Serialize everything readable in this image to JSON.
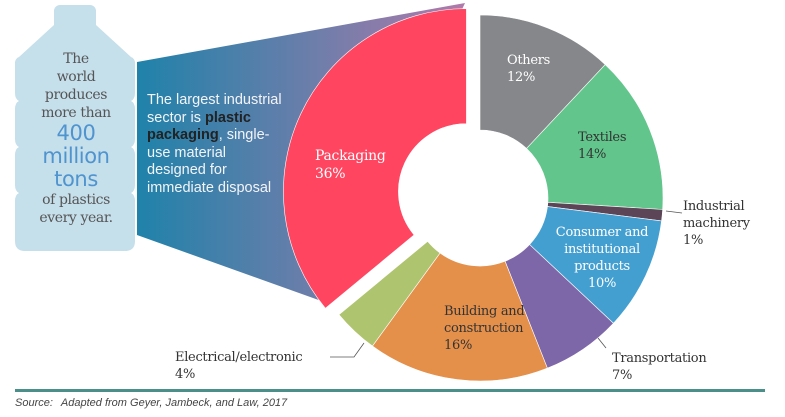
{
  "bottle": {
    "line1": "The",
    "line2": "world",
    "line3": "produces",
    "line4": "more than",
    "big1": "400",
    "big2": "million",
    "big3": "tons",
    "line5": "of plastics",
    "line6": "every year."
  },
  "callout": {
    "before": "The largest industrial sector is",
    "bold": "plastic packaging",
    "after": ", single-use material designed for immediate disposal"
  },
  "chart_data": {
    "type": "pie",
    "donut": true,
    "start": "top, clockwise",
    "exploded": "Packaging",
    "slices": [
      {
        "label": "Others",
        "value": 12,
        "pct": "12%",
        "color": "#86878a"
      },
      {
        "label": "Textiles",
        "value": 14,
        "pct": "14%",
        "color": "#62c68c"
      },
      {
        "label": "Industrial machinery",
        "value": 1,
        "pct": "1%",
        "color": "#5b4556"
      },
      {
        "label": "Consumer and institutional products",
        "value": 10,
        "pct": "10%",
        "color": "#449fd1"
      },
      {
        "label": "Transportation",
        "value": 7,
        "pct": "7%",
        "color": "#7e67a8"
      },
      {
        "label": "Building and construction",
        "value": 16,
        "pct": "16%",
        "color": "#e4904b"
      },
      {
        "label": "Electrical/electronic",
        "value": 4,
        "pct": "4%",
        "color": "#aec46f"
      },
      {
        "label": "Packaging",
        "value": 36,
        "pct": "36%",
        "color": "#ff4560"
      }
    ]
  },
  "labels": {
    "others": [
      "Others"
    ],
    "textiles": [
      "Textiles"
    ],
    "industrial": [
      "Industrial",
      "machinery"
    ],
    "consumer": [
      "Consumer and",
      "institutional",
      "products"
    ],
    "transportation": [
      "Transportation"
    ],
    "building": [
      "Building and",
      "construction"
    ],
    "electrical": [
      "Electrical/electronic"
    ],
    "packaging": [
      "Packaging"
    ]
  },
  "source": {
    "prefix": "Source:",
    "text": "Adapted from Geyer, Jambeck, and Law, 2017"
  },
  "colors": {
    "bottle": "#c5dfeb",
    "gradient_start": "#1f82aa",
    "gradient_end": "#b07aaa",
    "rule": "#4a8f8a"
  }
}
